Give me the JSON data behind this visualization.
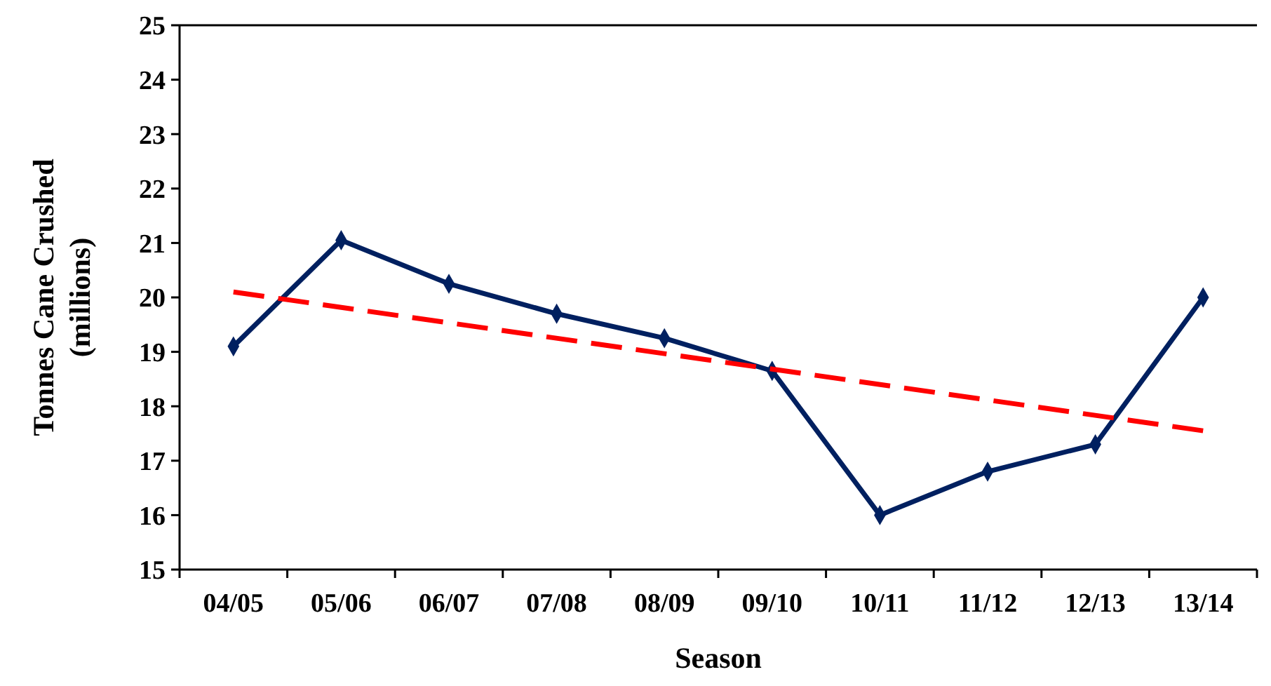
{
  "chart_data": {
    "type": "line",
    "xlabel": "Season",
    "ylabel": "Tonnes Cane Crushed (millions)",
    "categories": [
      "04/05",
      "05/06",
      "06/07",
      "07/08",
      "08/09",
      "09/10",
      "10/11",
      "11/12",
      "12/13",
      "13/14"
    ],
    "series": [
      {
        "color": "#002060",
        "values": [
          19.1,
          21.05,
          20.25,
          19.7,
          19.25,
          18.65,
          16.0,
          16.8,
          17.3,
          20.0
        ],
        "marker": "diamond",
        "line_style": "solid"
      },
      {
        "type": "line",
        "color": "#ff0000",
        "x": [
          "04/05",
          "13/14"
        ],
        "values": [
          20.1,
          17.55
        ],
        "marker": "none",
        "line_style": "dashed"
      }
    ],
    "ylim": [
      15,
      25
    ],
    "yticks": [
      15,
      16,
      17,
      18,
      19,
      20,
      21,
      22,
      23,
      24,
      25
    ],
    "grid": false
  }
}
